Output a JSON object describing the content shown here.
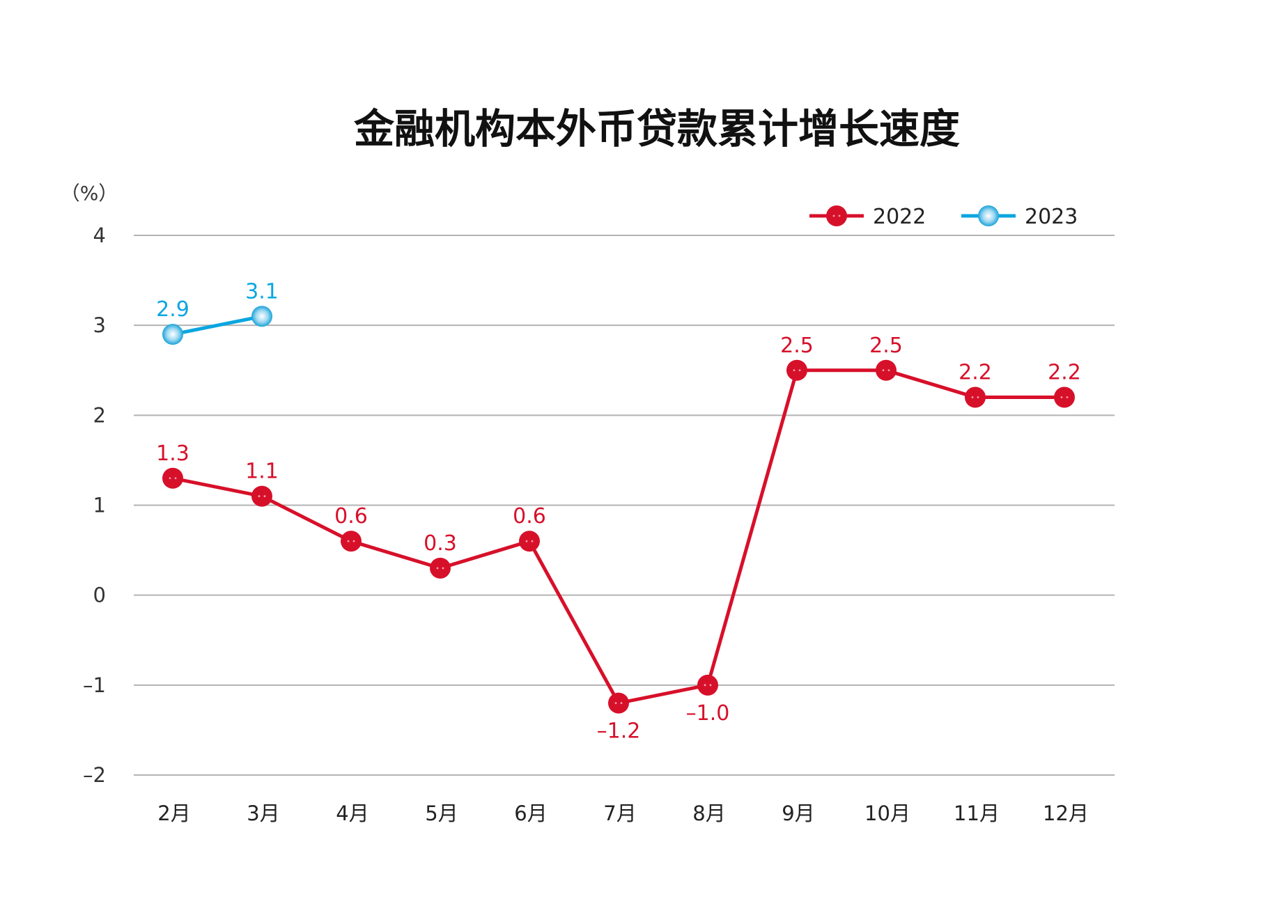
{
  "chart_data": {
    "type": "line",
    "title": "金融机构本外币贷款累计增长速度",
    "ylabel": "（%）",
    "xlabel": "",
    "categories": [
      "2月",
      "3月",
      "4月",
      "5月",
      "6月",
      "7月",
      "8月",
      "9月",
      "10月",
      "11月",
      "12月"
    ],
    "ylim": [
      -2,
      4
    ],
    "yticks": [
      {
        "value": 4,
        "label": "4"
      },
      {
        "value": 3,
        "label": "3"
      },
      {
        "value": 2,
        "label": "2"
      },
      {
        "value": 1,
        "label": "1"
      },
      {
        "value": 0,
        "label": "0"
      },
      {
        "value": -1,
        "label": "–1"
      },
      {
        "value": -2,
        "label": "–2"
      }
    ],
    "grid": true,
    "legend_position": "top-right",
    "series": [
      {
        "name": "2022",
        "color": "#d7102a",
        "values": [
          1.3,
          1.1,
          0.6,
          0.3,
          0.6,
          -1.2,
          -1.0,
          2.5,
          2.5,
          2.2,
          2.2
        ],
        "labels": [
          "1.3",
          "1.1",
          "0.6",
          "0.3",
          "0.6",
          "–1.2",
          "–1.0",
          "2.5",
          "2.5",
          "2.2",
          "2.2"
        ],
        "label_position": [
          "above",
          "above",
          "above",
          "above",
          "above",
          "below",
          "below",
          "above",
          "above",
          "above",
          "above"
        ]
      },
      {
        "name": "2023",
        "color": "#0aa6e0",
        "values": [
          2.9,
          3.1,
          null,
          null,
          null,
          null,
          null,
          null,
          null,
          null,
          null
        ],
        "labels": [
          "2.9",
          "3.1",
          null,
          null,
          null,
          null,
          null,
          null,
          null,
          null,
          null
        ],
        "label_position": [
          "above",
          "above",
          null,
          null,
          null,
          null,
          null,
          null,
          null,
          null,
          null
        ]
      }
    ]
  }
}
